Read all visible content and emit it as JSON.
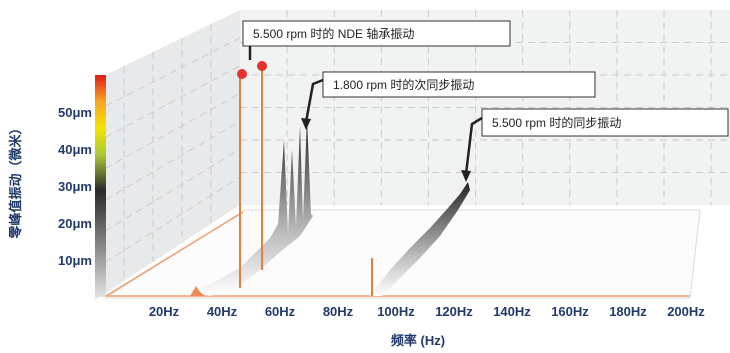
{
  "chart_data": {
    "type": "area",
    "projection": "3d-waterfall",
    "xlabel": "频率 (Hz)",
    "ylabel": "零峰值振动（微米）",
    "x_ticks": [
      "20Hz",
      "40Hz",
      "60Hz",
      "80Hz",
      "100Hz",
      "120Hz",
      "140Hz",
      "160Hz",
      "180Hz",
      "200Hz"
    ],
    "y_ticks": [
      "10μm",
      "20μm",
      "30μm",
      "40μm",
      "50μm"
    ],
    "xlim": [
      0,
      200
    ],
    "ylim": [
      0,
      60
    ],
    "grid": true,
    "legend": "color-bar-left",
    "colorbar_colors": [
      "#e21a1a",
      "#f5a623",
      "#f5e400",
      "#a8c83a",
      "#2a2a2a",
      "#8a8a8a",
      "#dddddd"
    ],
    "peak_color": "#e5322d",
    "peaks": [
      {
        "x": 47,
        "y": 55
      },
      {
        "x": 55,
        "y": 56
      }
    ],
    "annotations": [
      {
        "text": "5.500 rpm 时的 NDE 轴承振动",
        "x": 55
      },
      {
        "text": "1.800 rpm 时的次同步振动",
        "x": 68
      },
      {
        "text": "5.500 rpm 时的同步振动",
        "x": 128
      }
    ]
  }
}
